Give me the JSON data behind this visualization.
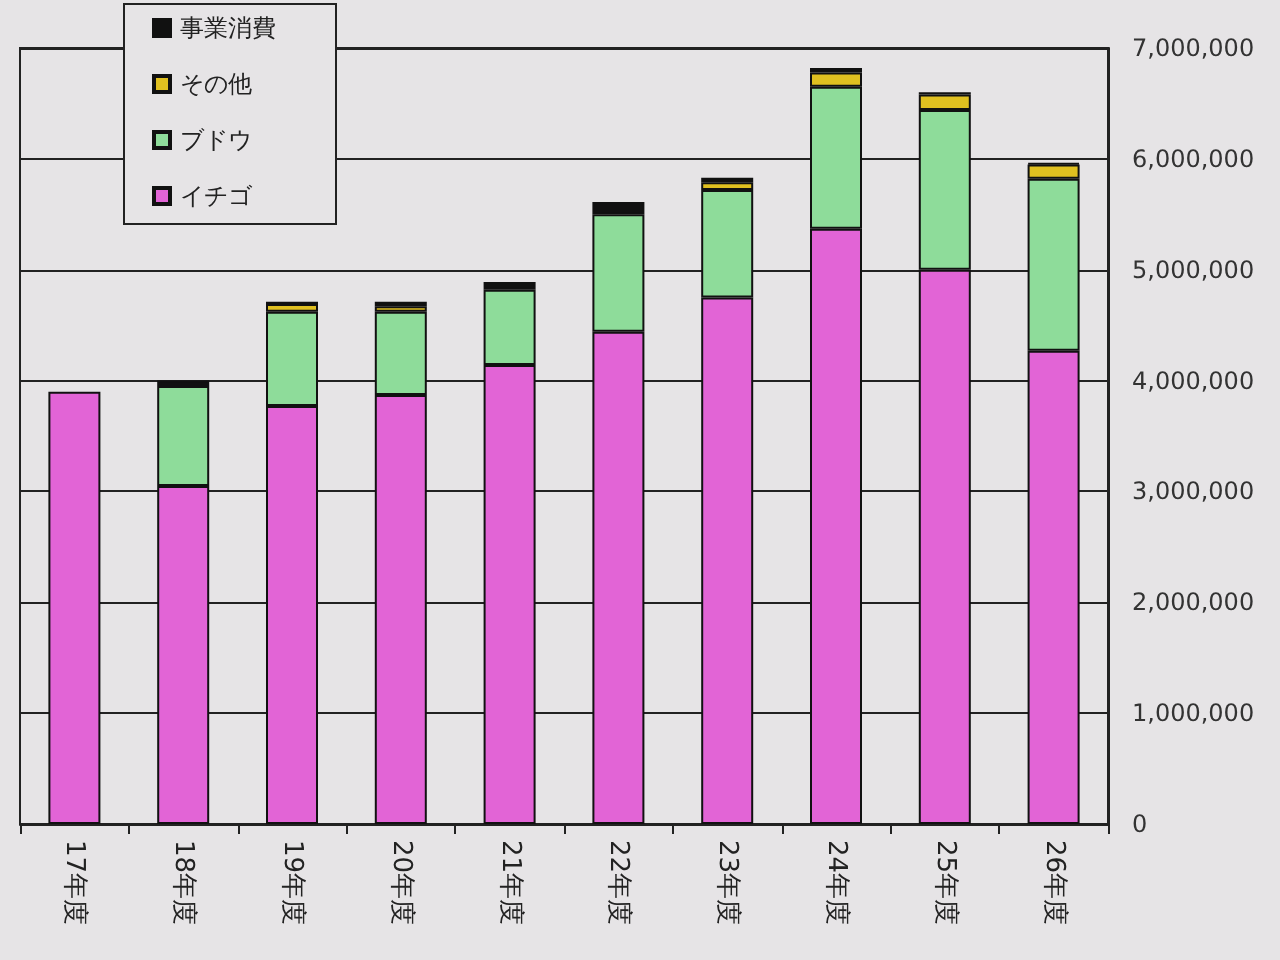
{
  "chart_data": {
    "type": "bar",
    "stacked": true,
    "categories": [
      "17年度",
      "18年度",
      "19年度",
      "20年度",
      "21年度",
      "22年度",
      "23年度",
      "24年度",
      "25年度",
      "26年度"
    ],
    "series": [
      {
        "name": "イチゴ",
        "color": "#e264d6",
        "values": [
          3900000,
          3050000,
          3770000,
          3870000,
          4140000,
          4440000,
          4750000,
          5370000,
          5000000,
          4270000
        ]
      },
      {
        "name": "ブドウ",
        "color": "#8edc9a",
        "values": [
          0,
          900000,
          850000,
          750000,
          680000,
          1060000,
          970000,
          1280000,
          1440000,
          1550000
        ]
      },
      {
        "name": "その他",
        "color": "#e0c020",
        "values": [
          0,
          0,
          70000,
          50000,
          0,
          0,
          70000,
          130000,
          140000,
          130000
        ]
      },
      {
        "name": "事業消費",
        "color": "#111111",
        "values": [
          0,
          50000,
          20000,
          40000,
          70000,
          110000,
          40000,
          40000,
          20000,
          10000
        ]
      }
    ],
    "ylim": [
      0,
      7000000
    ],
    "yticks": [
      0,
      {
        "value": 1000000,
        "label": "1,000,000"
      },
      {
        "value": 2000000,
        "label": "2,000,000"
      },
      {
        "value": 3000000,
        "label": "3,000,000"
      },
      {
        "value": 4000000,
        "label": "4,000,000"
      },
      {
        "value": 5000000,
        "label": "5,000,000"
      },
      {
        "value": 6000000,
        "label": "6,000,000"
      },
      {
        "value": 7000000,
        "label": "7,000,000"
      }
    ],
    "grid": "y",
    "legend": "top left"
  }
}
